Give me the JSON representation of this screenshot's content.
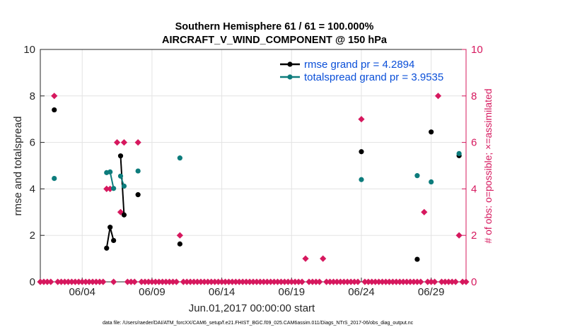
{
  "chart_data": {
    "type": "line",
    "title": "Southern Hemisphere 61 / 61 = 100.000%",
    "subtitle": "AIRCRAFT_V_WIND_COMPONENT @ 150 hPa",
    "xlabel": "Jun.01,2017 00:00:00 start",
    "ylabel": "rmse and totalspread",
    "ylabel_right": "# of obs: o=possible; ×=assimilated",
    "xlim": [
      0.5,
      31.0
    ],
    "ylim": [
      0,
      10
    ],
    "ylim_right": [
      0,
      10
    ],
    "grid": true,
    "x_ticks": [
      3.5,
      8.5,
      13.5,
      18.5,
      23.5,
      28.5
    ],
    "x_tick_labels": [
      "06/04",
      "06/09",
      "06/14",
      "06/19",
      "06/24",
      "06/29"
    ],
    "y_ticks": [
      0,
      2,
      4,
      6,
      8,
      10
    ],
    "y_tick_labels": [
      "0",
      "2",
      "4",
      "6",
      "8",
      "10"
    ],
    "y_right_ticks": [
      0,
      2,
      4,
      6,
      8,
      10
    ],
    "y_right_tick_labels": [
      "0",
      "2",
      "4",
      "6",
      "8",
      "10"
    ],
    "legend_position": "top-right",
    "series": [
      {
        "name": "rmse grand pr = 4.2894",
        "color": "#000000",
        "axis": "left",
        "points": [
          [
            1.5,
            7.4
          ],
          [
            5.25,
            1.45
          ],
          [
            5.5,
            2.35
          ],
          [
            5.75,
            1.78
          ],
          [
            6.25,
            5.42
          ],
          [
            6.5,
            2.88
          ],
          [
            7.5,
            3.75
          ],
          [
            10.5,
            1.63
          ],
          [
            23.5,
            5.6
          ],
          [
            27.5,
            0.97
          ],
          [
            28.5,
            6.45
          ],
          [
            30.5,
            5.43
          ]
        ],
        "segments": [
          [
            1,
            2,
            3
          ],
          [
            4,
            5
          ]
        ]
      },
      {
        "name": "totalspread grand pr = 3.9535",
        "color": "#0d7c7c",
        "axis": "left",
        "points": [
          [
            1.5,
            4.45
          ],
          [
            5.25,
            4.7
          ],
          [
            5.5,
            4.73
          ],
          [
            5.75,
            4.02
          ],
          [
            6.25,
            4.55
          ],
          [
            6.5,
            4.12
          ],
          [
            7.5,
            4.77
          ],
          [
            10.5,
            5.33
          ],
          [
            23.5,
            4.4
          ],
          [
            27.5,
            4.57
          ],
          [
            28.5,
            4.3
          ],
          [
            30.5,
            5.52
          ]
        ],
        "segments": [
          [
            1,
            2,
            3
          ],
          [
            4,
            5
          ]
        ]
      },
      {
        "name": "# of obs possible",
        "color": "#d6185e",
        "axis": "right",
        "x": [
          0.5,
          0.75,
          1.0,
          1.25,
          1.5,
          1.75,
          2.0,
          2.25,
          2.5,
          2.75,
          3.0,
          3.25,
          3.5,
          3.75,
          4.0,
          4.25,
          4.5,
          4.75,
          5.0,
          5.25,
          5.5,
          5.75,
          6.0,
          6.25,
          6.5,
          6.75,
          7.0,
          7.25,
          7.5,
          7.75,
          8.0,
          8.25,
          8.5,
          8.75,
          9.0,
          9.25,
          9.5,
          9.75,
          10.0,
          10.25,
          10.5,
          10.75,
          11.0,
          11.25,
          11.5,
          11.75,
          12.0,
          12.25,
          12.5,
          12.75,
          13.0,
          13.25,
          13.5,
          13.75,
          14.0,
          14.25,
          14.5,
          14.75,
          15.0,
          15.25,
          15.5,
          15.75,
          16.0,
          16.25,
          16.5,
          16.75,
          17.0,
          17.25,
          17.5,
          17.75,
          18.0,
          18.25,
          18.5,
          18.75,
          19.0,
          19.25,
          19.5,
          19.75,
          20.0,
          20.25,
          20.5,
          20.75,
          21.0,
          21.25,
          21.5,
          21.75,
          22.0,
          22.25,
          22.5,
          22.75,
          23.0,
          23.25,
          23.5,
          23.75,
          24.0,
          24.25,
          24.5,
          24.75,
          25.0,
          25.25,
          25.5,
          25.75,
          26.0,
          26.25,
          26.5,
          26.75,
          27.0,
          27.25,
          27.5,
          27.75,
          28.0,
          28.25,
          28.5,
          28.75,
          29.0,
          29.25,
          29.5,
          29.75,
          30.0,
          30.25,
          30.5,
          30.75,
          31.0
        ],
        "values": [
          0,
          0,
          0,
          0,
          8,
          0,
          0,
          0,
          0,
          0,
          0,
          0,
          0,
          0,
          0,
          0,
          0,
          0,
          0,
          4,
          4,
          0,
          6,
          3,
          6,
          0,
          0,
          0,
          6,
          0,
          0,
          0,
          0,
          0,
          0,
          0,
          0,
          0,
          0,
          0,
          2,
          0,
          0,
          0,
          0,
          0,
          0,
          0,
          0,
          0,
          0,
          0,
          0,
          0,
          0,
          0,
          0,
          0,
          0,
          0,
          0,
          0,
          0,
          0,
          0,
          0,
          0,
          0,
          0,
          0,
          0,
          0,
          0,
          0,
          0,
          0,
          1,
          0,
          0,
          0,
          0,
          1,
          0,
          0,
          0,
          0,
          0,
          0,
          0,
          0,
          0,
          0,
          7,
          0,
          0,
          0,
          0,
          0,
          0,
          0,
          0,
          0,
          0,
          0,
          0,
          0,
          0,
          0,
          0,
          0,
          3,
          0,
          0,
          0,
          8,
          0,
          0,
          0,
          0,
          0,
          2,
          0,
          0
        ]
      }
    ],
    "legend_entries": [
      "rmse grand pr = 4.2894",
      "totalspread grand pr = 3.9535"
    ]
  },
  "footer": "data file: /Users/raeder/DAI/ATM_forcXX/CAM6_setup/f.e21.FHIST_BGC.f09_025.CAM6assim.011/Diags_NTrS_2017-06/obs_diag_output.nc"
}
